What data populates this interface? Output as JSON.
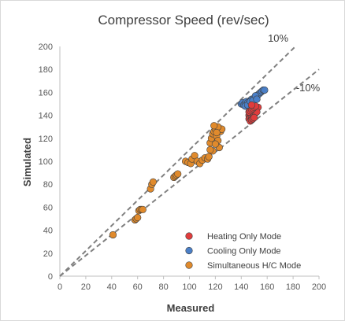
{
  "chart_data": {
    "type": "scatter",
    "title": "Compressor Speed  (rev/sec)",
    "xlabel": "Measured",
    "ylabel": "Simulated",
    "xlim": [
      0,
      200
    ],
    "ylim": [
      0,
      200
    ],
    "xticks": [
      0,
      20,
      40,
      60,
      80,
      100,
      120,
      140,
      160,
      180,
      200
    ],
    "yticks": [
      0,
      20,
      40,
      60,
      80,
      100,
      120,
      140,
      160,
      180,
      200
    ],
    "grid": false,
    "legend_position": "bottom-right",
    "reference_lines": [
      {
        "label": "10%",
        "slope": 1.1
      },
      {
        "label": "-10%",
        "slope": 0.9
      }
    ],
    "series": [
      {
        "name": "Heating Only Mode",
        "color": "#e03c3c",
        "x": [
          146,
          147,
          148,
          149,
          150,
          151,
          152,
          153,
          146,
          147,
          148,
          149,
          150,
          151,
          152,
          146,
          147,
          148,
          149,
          150,
          151,
          147,
          148,
          149,
          150,
          148
        ],
        "y": [
          140,
          141,
          142,
          143,
          144,
          145,
          146,
          147,
          137,
          138,
          139,
          140,
          141,
          142,
          143,
          143,
          144,
          145,
          146,
          147,
          148,
          135,
          136,
          137,
          138,
          149
        ]
      },
      {
        "name": "Cooling Only Mode",
        "color": "#4a7fc7",
        "x": [
          140,
          141,
          142,
          143,
          144,
          145,
          146,
          147,
          148,
          149,
          150,
          151,
          152,
          153,
          154,
          155,
          156,
          157,
          158,
          143,
          145,
          147,
          149,
          151,
          152
        ],
        "y": [
          150,
          151,
          149,
          150,
          152,
          151,
          150,
          153,
          154,
          152,
          155,
          156,
          157,
          158,
          159,
          160,
          161,
          162,
          162,
          148,
          149,
          152,
          153,
          157,
          154
        ]
      },
      {
        "name": "Simultaneous H/C Mode",
        "color": "#e08a2c",
        "x": [
          41,
          58,
          59,
          60,
          61,
          62,
          63,
          64,
          70,
          71,
          72,
          88,
          89,
          90,
          91,
          97,
          99,
          101,
          102,
          104,
          106,
          108,
          110,
          112,
          114,
          115,
          116,
          117,
          118,
          119,
          120,
          121,
          122,
          123,
          124,
          125,
          118,
          120,
          122,
          116,
          121,
          119
        ],
        "y": [
          36,
          49,
          50,
          51,
          57,
          58,
          58,
          58,
          76,
          80,
          82,
          86,
          87,
          88,
          89,
          100,
          99,
          98,
          102,
          105,
          100,
          98,
          101,
          103,
          102,
          104,
          116,
          120,
          124,
          126,
          128,
          122,
          118,
          112,
          126,
          128,
          109,
          115,
          130,
          110,
          125,
          131
        ]
      }
    ]
  }
}
